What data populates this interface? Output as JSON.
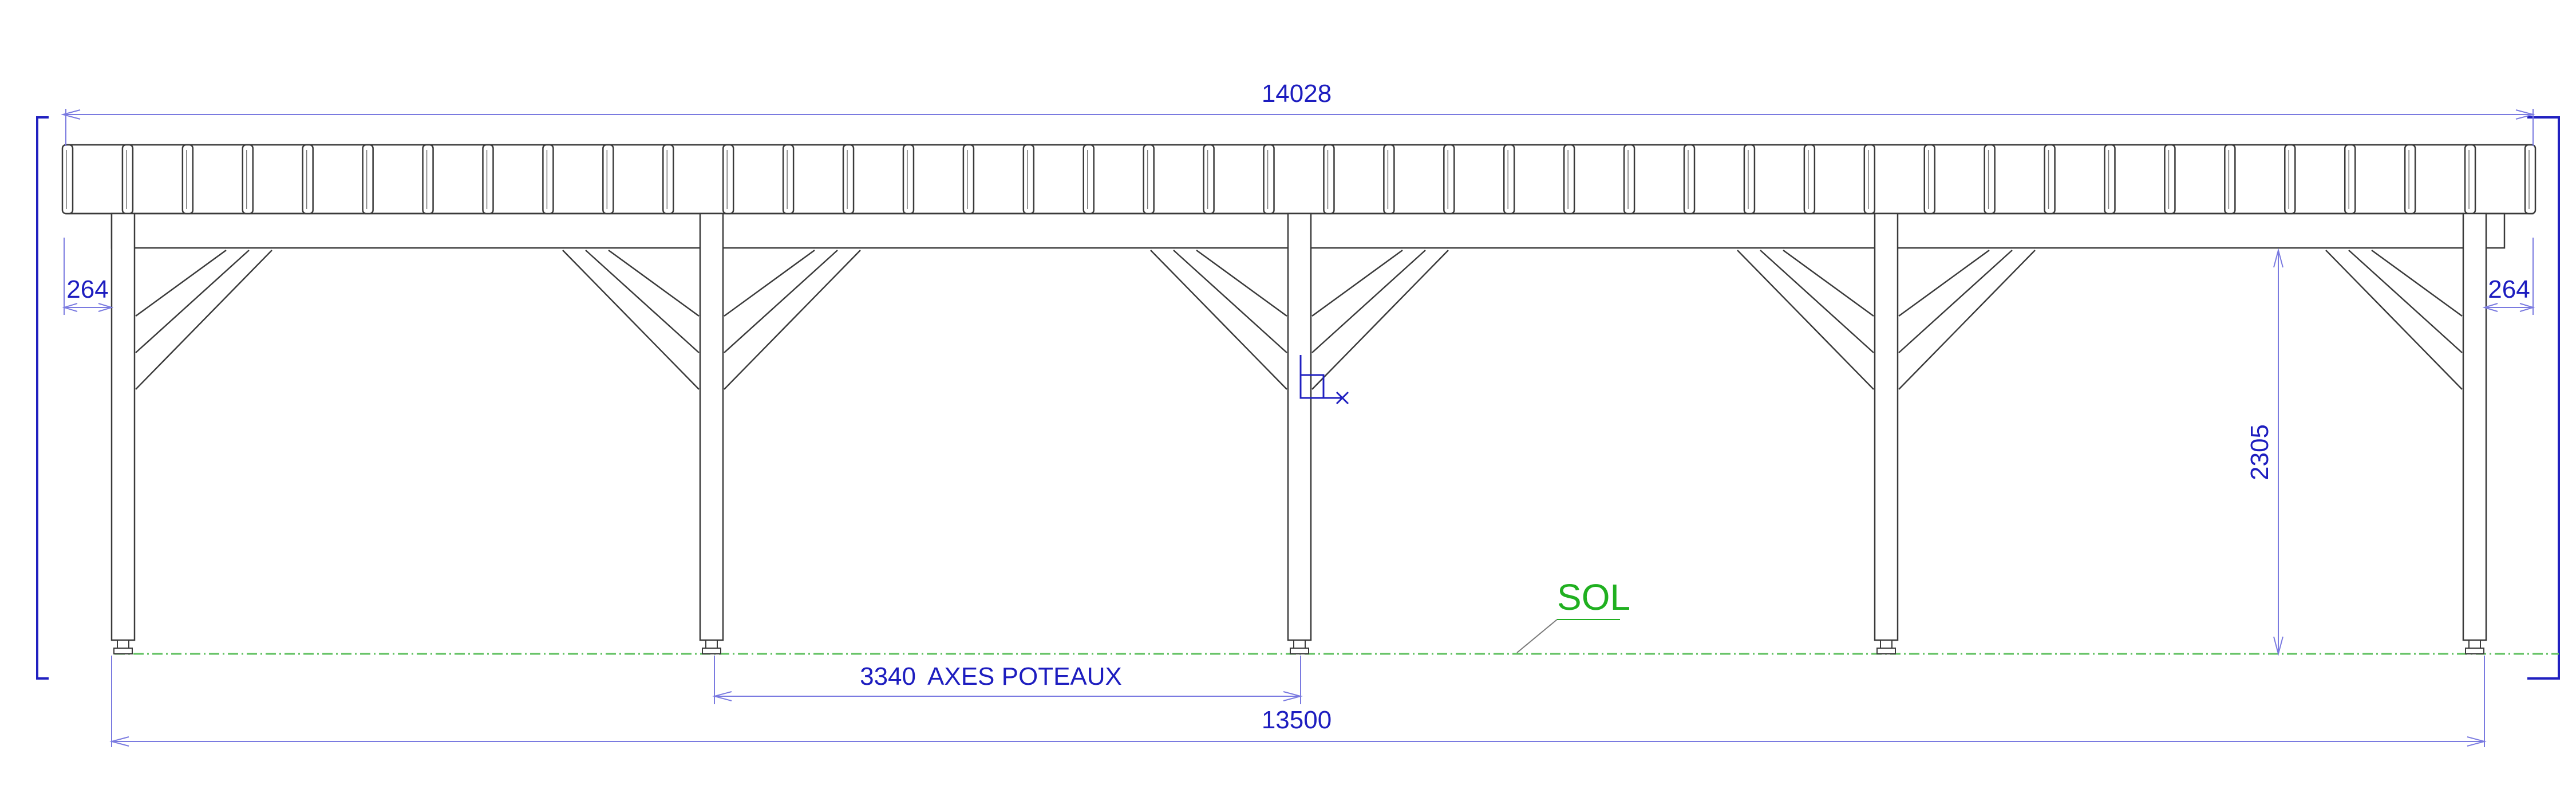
{
  "dimensions": {
    "overall_length": "14028",
    "overhang_left": "264",
    "overhang_right": "264",
    "height": "2305",
    "post_axis_spacing": "3340",
    "post_axis_label": "AXES POTEAUX",
    "post_axis_total": "13500"
  },
  "ground_label": "SOL",
  "colors": {
    "dimension": "#1d1dbf",
    "ground": "#20b020",
    "structure": "#3a3a3a",
    "frame": "#2020c0"
  },
  "icons": [
    "ucs-axis-icon"
  ]
}
